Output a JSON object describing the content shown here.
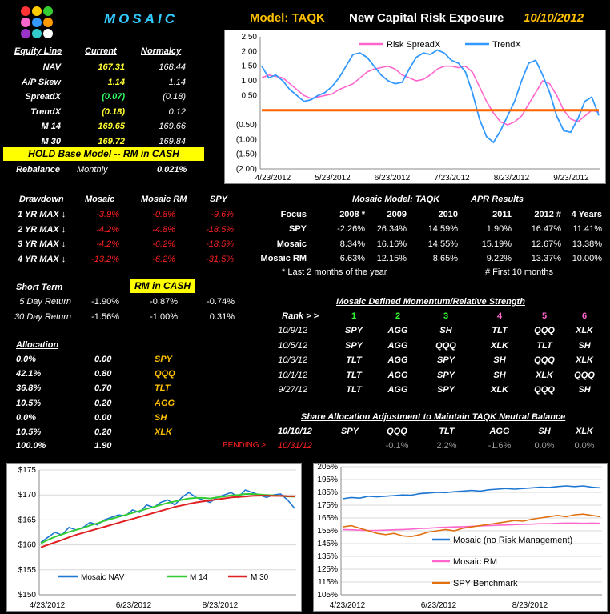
{
  "header": {
    "brand": "MOSAIC",
    "model": "Model: TAQK",
    "title": "New Capital Risk Exposure",
    "date": "10/10/2012",
    "logo_colors": [
      "#ff3333",
      "#ffcc00",
      "#33cc33",
      "#ff66cc",
      "#3399ff",
      "#ff9900",
      "#9933cc",
      "#33cccc",
      "#ffffff"
    ]
  },
  "equity": {
    "headers": [
      "Equity Line",
      "Current",
      "Normalcy"
    ],
    "rows": [
      {
        "label": "NAV",
        "current": "167.31",
        "normalcy": "168.44"
      },
      {
        "label": "A/P Skew",
        "current": "1.14",
        "normalcy": "1.14"
      },
      {
        "label": "SpreadX",
        "current": "(0.07)",
        "normalcy": "(0.18)"
      },
      {
        "label": "TrendX",
        "current": "(0.18)",
        "normalcy": "0.12"
      },
      {
        "label": "M 14",
        "current": "169.65",
        "normalcy": "169.66"
      },
      {
        "label": "M 30",
        "current": "169.72",
        "normalcy": "169.84"
      }
    ],
    "hold_banner": "HOLD Base Model -- RM in CASH",
    "rebalance_label": "Rebalance",
    "rebalance_freq": "Monthly",
    "rebalance_pct": "0.021%"
  },
  "drawdown": {
    "headers": [
      "Drawdown",
      "Mosaic",
      "Mosaic RM",
      "SPY"
    ],
    "rows": [
      {
        "label": "1 YR MAX ↓",
        "mosaic": "-3.9%",
        "rm": "-0.8%",
        "spy": "-9.6%"
      },
      {
        "label": "2 YR MAX ↓",
        "mosaic": "-4.2%",
        "rm": "-4.8%",
        "spy": "-18.5%"
      },
      {
        "label": "3 YR MAX ↓",
        "mosaic": "-4.2%",
        "rm": "-6.2%",
        "spy": "-18.5%"
      },
      {
        "label": "4 YR MAX ↓",
        "mosaic": "-13.2%",
        "rm": "-6.2%",
        "spy": "-31.5%"
      }
    ]
  },
  "apr": {
    "title_left": "Mosaic Model:  TAQK",
    "title_right": "APR Results",
    "headers": [
      "Focus",
      "2008 *",
      "2009",
      "2010",
      "2011",
      "2012 #",
      "4 Years"
    ],
    "rows": [
      {
        "label": "SPY",
        "vals": [
          "-2.26%",
          "26.34%",
          "14.59%",
          "1.90%",
          "16.47%",
          "11.41%"
        ]
      },
      {
        "label": "Mosaic",
        "vals": [
          "8.34%",
          "16.16%",
          "14.55%",
          "15.19%",
          "12.67%",
          "13.38%"
        ]
      },
      {
        "label": "Mosaic RM",
        "vals": [
          "6.63%",
          "12.15%",
          "8.65%",
          "9.22%",
          "13.37%",
          "10.00%"
        ]
      }
    ],
    "note1": "*  Last 2 months of the year",
    "note2": "#  First 10 months"
  },
  "short_term": {
    "header": "Short Term",
    "badge": "RM in CASH",
    "rows": [
      {
        "label": "5 Day Return",
        "a": "-1.90%",
        "b": "-0.87%",
        "c": "-0.74%"
      },
      {
        "label": "30 Day Return",
        "a": "-1.56%",
        "b": "-1.00%",
        "c": "0.31%"
      }
    ]
  },
  "momentum": {
    "title": "Mosaic Defined Momentum/Relative Strength",
    "rank_label": "Rank > >",
    "ranks": [
      "1",
      "2",
      "3",
      "4",
      "5",
      "6"
    ],
    "rows": [
      {
        "date": "10/9/12",
        "vals": [
          "SPY",
          "AGG",
          "SH",
          "TLT",
          "QQQ",
          "XLK"
        ]
      },
      {
        "date": "10/5/12",
        "vals": [
          "SPY",
          "AGG",
          "QQQ",
          "XLK",
          "TLT",
          "SH"
        ]
      },
      {
        "date": "10/3/12",
        "vals": [
          "TLT",
          "AGG",
          "SPY",
          "SH",
          "QQQ",
          "XLK"
        ]
      },
      {
        "date": "10/1/12",
        "vals": [
          "TLT",
          "AGG",
          "SPY",
          "SH",
          "XLK",
          "QQQ"
        ]
      },
      {
        "date": "9/27/12",
        "vals": [
          "TLT",
          "AGG",
          "SPY",
          "XLK",
          "QQQ",
          "SH"
        ]
      }
    ]
  },
  "allocation": {
    "header": "Allocation",
    "rows": [
      {
        "pct": "0.0%",
        "shares": "0.00",
        "ticker": "SPY"
      },
      {
        "pct": "42.1%",
        "shares": "0.80",
        "ticker": "QQQ"
      },
      {
        "pct": "36.8%",
        "shares": "0.70",
        "ticker": "TLT"
      },
      {
        "pct": "10.5%",
        "shares": "0.20",
        "ticker": "AGG"
      },
      {
        "pct": "0.0%",
        "shares": "0.00",
        "ticker": "SH"
      },
      {
        "pct": "10.5%",
        "shares": "0.20",
        "ticker": "XLK"
      }
    ],
    "total_pct": "100.0%",
    "total_shares": "1.90"
  },
  "share_adjust": {
    "title": "Share Allocation Adjustment to Maintain TAQK Neutral Balance",
    "date": "10/10/12",
    "tickers": [
      "SPY",
      "QQQ",
      "TLT",
      "AGG",
      "SH",
      "XLK"
    ],
    "pending_label": "PENDING  >",
    "pending_date": "10/31/12",
    "vals": [
      "",
      "-0.1%",
      "2.2%",
      "-1.6%",
      "0.0%",
      "0.0%"
    ]
  },
  "chart_data": [
    {
      "type": "line",
      "title": "",
      "x_labels": [
        "4/23/2012",
        "5/23/2012",
        "6/23/2012",
        "7/23/2012",
        "8/23/2012",
        "9/23/2012"
      ],
      "y_labels": [
        "2.50",
        "2.00",
        "1.50",
        "1.00",
        "0.50",
        "-",
        "(0.50)",
        "(1.00)",
        "(1.50)",
        "(2.00)"
      ],
      "ylim": [
        -2.0,
        2.5
      ],
      "legend": [
        "Risk SpreadX",
        "TrendX"
      ],
      "series": [
        {
          "name": "Risk SpreadX",
          "color": "#ff66cc",
          "values": [
            1.1,
            1.2,
            1.15,
            1.1,
            0.9,
            0.7,
            0.5,
            0.4,
            0.45,
            0.5,
            0.55,
            0.7,
            0.8,
            0.9,
            1.1,
            1.3,
            1.4,
            1.45,
            1.5,
            1.4,
            1.2,
            1.1,
            1.0,
            1.05,
            1.2,
            1.4,
            1.5,
            1.5,
            1.45,
            1.5,
            1.3,
            0.8,
            0.3,
            -0.1,
            -0.4,
            -0.5,
            -0.4,
            -0.2,
            0.2,
            0.6,
            1.0,
            0.9,
            0.5,
            0.0,
            -0.3,
            -0.4,
            -0.2,
            0.0,
            -0.07
          ]
        },
        {
          "name": "TrendX",
          "color": "#3399ff",
          "values": [
            1.5,
            1.1,
            1.2,
            1.0,
            0.7,
            0.5,
            0.3,
            0.35,
            0.5,
            0.6,
            0.8,
            1.1,
            1.5,
            1.9,
            1.95,
            1.8,
            1.5,
            1.2,
            1.0,
            0.9,
            0.95,
            1.4,
            1.8,
            1.95,
            1.9,
            2.05,
            1.95,
            1.7,
            1.6,
            1.3,
            0.6,
            -0.3,
            -0.9,
            -1.1,
            -0.7,
            -0.2,
            0.3,
            1.0,
            1.6,
            1.7,
            1.2,
            0.6,
            -0.2,
            -0.7,
            -0.75,
            -0.3,
            0.3,
            0.45,
            -0.18
          ]
        },
        {
          "name": "",
          "color": "#ff6600",
          "values": [
            0,
            0,
            0,
            0,
            0,
            0,
            0,
            0,
            0,
            0,
            0,
            0,
            0,
            0,
            0,
            0,
            0,
            0,
            0,
            0,
            0,
            0,
            0,
            0,
            0,
            0,
            0,
            0,
            0,
            0,
            0,
            0,
            0,
            0,
            0,
            0,
            0,
            0,
            0,
            0,
            0,
            0,
            0,
            0,
            0,
            0,
            0,
            0,
            0
          ]
        }
      ]
    },
    {
      "type": "line",
      "x_labels": [
        "4/23/2012",
        "6/23/2012",
        "8/23/2012"
      ],
      "y_labels": [
        "$175",
        "$170",
        "$165",
        "$160",
        "$155",
        "$150"
      ],
      "ylim": [
        150,
        175
      ],
      "legend": [
        "Mosaic NAV",
        "M 14",
        "M 30"
      ],
      "series": [
        {
          "name": "Mosaic NAV",
          "color": "#1f77d4",
          "values": [
            160.5,
            161.5,
            162.5,
            162,
            163.5,
            163,
            163.5,
            164.5,
            164,
            165,
            165.5,
            166,
            165.8,
            167,
            166.5,
            168,
            167.5,
            168.5,
            169,
            168,
            169.5,
            170.5,
            169.5,
            169,
            168.5,
            169.5,
            170,
            170.5,
            169.5,
            171,
            170.5,
            170,
            169.5,
            170,
            170.2,
            169,
            167.3
          ]
        },
        {
          "name": "M 14",
          "color": "#33cc33",
          "values": [
            160.3,
            161,
            161.6,
            162.1,
            162.6,
            163,
            163.4,
            163.9,
            164.3,
            164.8,
            165.2,
            165.6,
            166,
            166.4,
            166.8,
            167.2,
            167.6,
            168,
            168.4,
            168.7,
            169,
            169.3,
            169.4,
            169.4,
            169.3,
            169.5,
            169.7,
            169.9,
            170,
            170.2,
            170.2,
            170.1,
            170,
            169.9,
            169.8,
            169.7,
            169.65
          ]
        },
        {
          "name": "M 30",
          "color": "#e02020",
          "values": [
            159.5,
            160,
            160.5,
            161,
            161.5,
            162,
            162.4,
            162.8,
            163.2,
            163.6,
            164,
            164.4,
            164.8,
            165.2,
            165.6,
            166,
            166.4,
            166.8,
            167.2,
            167.6,
            167.9,
            168.2,
            168.5,
            168.7,
            168.9,
            169.1,
            169.3,
            169.5,
            169.6,
            169.7,
            169.8,
            169.85,
            169.85,
            169.8,
            169.8,
            169.75,
            169.72
          ]
        }
      ]
    },
    {
      "type": "line",
      "x_labels": [
        "4/23/2012",
        "6/23/2012",
        "8/23/2012"
      ],
      "y_labels": [
        "205%",
        "195%",
        "185%",
        "175%",
        "165%",
        "155%",
        "145%",
        "135%",
        "125%",
        "115%",
        "105%"
      ],
      "ylim": [
        105,
        205
      ],
      "legend": [
        "Mosaic (no Risk Management)",
        "Mosaic RM",
        "SPY Benchmark"
      ],
      "series": [
        {
          "name": "Mosaic (no Risk Management)",
          "color": "#1f77d4",
          "values": [
            180,
            181,
            180.5,
            182,
            181.5,
            182,
            182.5,
            183,
            182.8,
            184,
            184.5,
            185,
            184.8,
            185.5,
            186,
            186.5,
            186,
            187,
            187.5,
            188,
            187.5,
            188,
            188.5,
            189,
            188.8,
            189.5,
            190,
            189.5,
            190,
            189,
            188.5
          ]
        },
        {
          "name": "Mosaic RM",
          "color": "#ff66cc",
          "values": [
            156,
            155.8,
            155.5,
            155.2,
            155.3,
            155.5,
            155.8,
            156,
            156.3,
            156.8,
            157,
            157.5,
            157.8,
            158,
            158.2,
            158.5,
            158.8,
            159,
            159.3,
            159.5,
            159.8,
            160,
            160.2,
            160.5,
            160.5,
            160.8,
            161,
            161,
            160.8,
            161,
            160.8
          ]
        },
        {
          "name": "SPY Benchmark",
          "color": "#e07010",
          "values": [
            158,
            159,
            157,
            155,
            153,
            152,
            153,
            151,
            150.5,
            152,
            154,
            155,
            156,
            155,
            157,
            158,
            159,
            160,
            161,
            162,
            163,
            162.5,
            164,
            165,
            166,
            167,
            166,
            167.5,
            168,
            167,
            166
          ]
        }
      ]
    }
  ]
}
